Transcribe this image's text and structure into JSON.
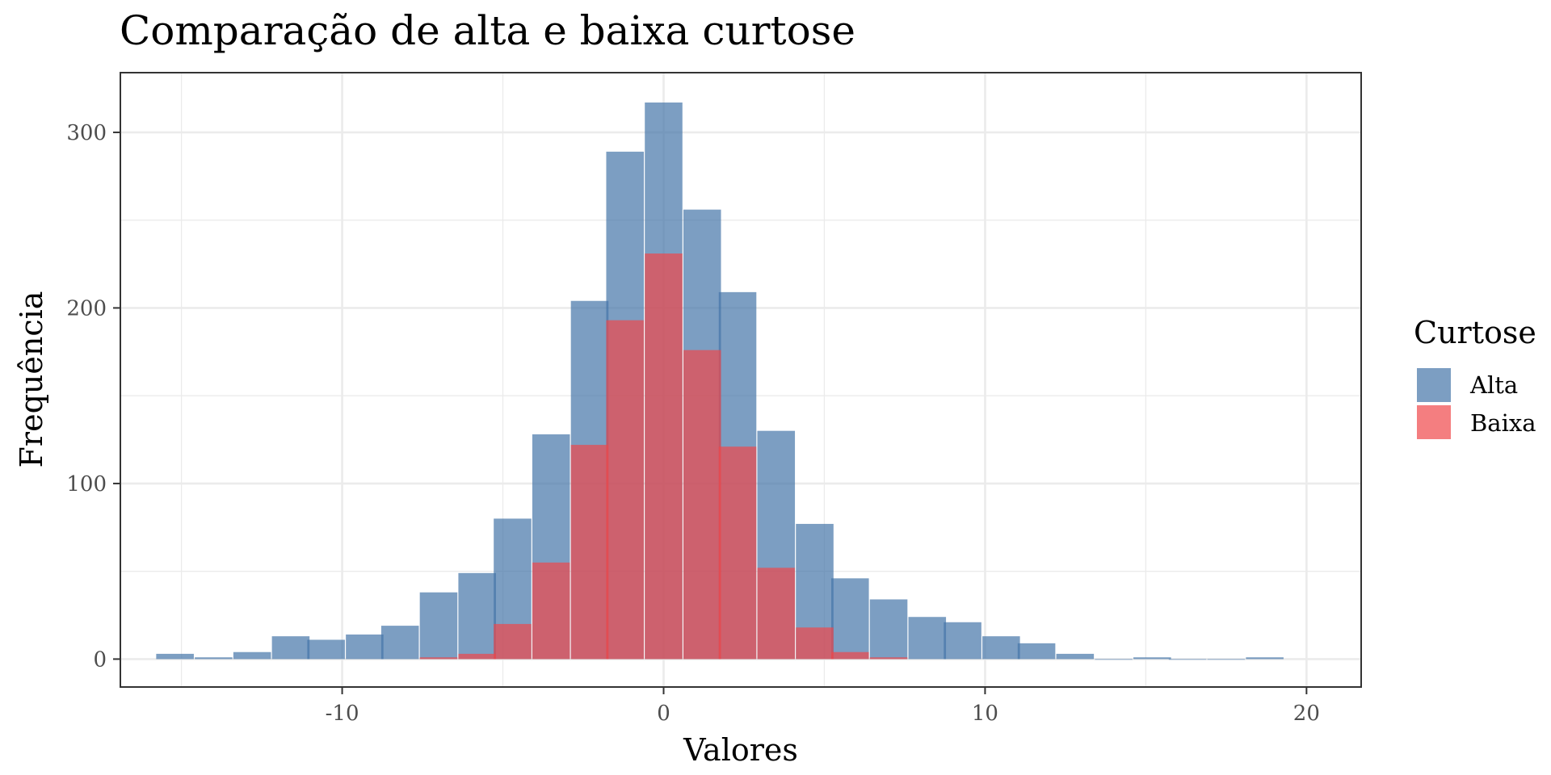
{
  "chart_data": {
    "type": "bar",
    "title": "Comparação de alta e baixa curtose",
    "xlabel": "Valores",
    "ylabel": "Frequência",
    "xlim": [
      -16.9,
      21.7
    ],
    "ylim": [
      -15.9,
      334
    ],
    "x_ticks": [
      -10,
      0,
      10,
      20
    ],
    "x_tick_labels": [
      "-10",
      "0",
      "10",
      "20"
    ],
    "y_ticks": [
      0,
      100,
      200,
      300
    ],
    "y_tick_labels": [
      "0",
      "100",
      "200",
      "300"
    ],
    "grid": true,
    "legend": {
      "title": "Curtose",
      "position": "right"
    },
    "bin_width": 1.17,
    "series": [
      {
        "name": "Alta",
        "color": "#4575a8",
        "bins": [
          {
            "x": -15.2,
            "value": 3
          },
          {
            "x": -14.0,
            "value": 1
          },
          {
            "x": -12.8,
            "value": 4
          },
          {
            "x": -11.6,
            "value": 13
          },
          {
            "x": -10.5,
            "value": 11
          },
          {
            "x": -9.3,
            "value": 14
          },
          {
            "x": -8.2,
            "value": 19
          },
          {
            "x": -7.0,
            "value": 38
          },
          {
            "x": -5.8,
            "value": 49
          },
          {
            "x": -4.7,
            "value": 80
          },
          {
            "x": -3.5,
            "value": 128
          },
          {
            "x": -2.3,
            "value": 204
          },
          {
            "x": -1.2,
            "value": 289
          },
          {
            "x": 0.0,
            "value": 317
          },
          {
            "x": 1.2,
            "value": 256
          },
          {
            "x": 2.3,
            "value": 209
          },
          {
            "x": 3.5,
            "value": 130
          },
          {
            "x": 4.7,
            "value": 77
          },
          {
            "x": 5.8,
            "value": 46
          },
          {
            "x": 7.0,
            "value": 34
          },
          {
            "x": 8.2,
            "value": 24
          },
          {
            "x": 9.3,
            "value": 21
          },
          {
            "x": 10.5,
            "value": 13
          },
          {
            "x": 11.6,
            "value": 9
          },
          {
            "x": 12.8,
            "value": 3
          },
          {
            "x": 14.0,
            "value": 0
          },
          {
            "x": 15.2,
            "value": 1
          },
          {
            "x": 16.3,
            "value": 0
          },
          {
            "x": 17.5,
            "value": 0
          },
          {
            "x": 18.7,
            "value": 1
          }
        ]
      },
      {
        "name": "Baixa",
        "color": "#f0474a",
        "bins": [
          {
            "x": -7.0,
            "value": 1
          },
          {
            "x": -5.8,
            "value": 3
          },
          {
            "x": -4.7,
            "value": 20
          },
          {
            "x": -3.5,
            "value": 55
          },
          {
            "x": -2.3,
            "value": 122
          },
          {
            "x": -1.2,
            "value": 193
          },
          {
            "x": 0.0,
            "value": 231
          },
          {
            "x": 1.2,
            "value": 176
          },
          {
            "x": 2.3,
            "value": 121
          },
          {
            "x": 3.5,
            "value": 52
          },
          {
            "x": 4.7,
            "value": 18
          },
          {
            "x": 5.8,
            "value": 4
          },
          {
            "x": 7.0,
            "value": 1
          }
        ]
      }
    ]
  }
}
